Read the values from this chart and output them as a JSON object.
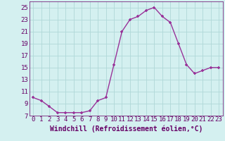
{
  "x": [
    0,
    1,
    2,
    3,
    4,
    5,
    6,
    7,
    8,
    9,
    10,
    11,
    12,
    13,
    14,
    15,
    16,
    17,
    18,
    19,
    20,
    21,
    22,
    23
  ],
  "y": [
    10.0,
    9.5,
    8.5,
    7.5,
    7.5,
    7.5,
    7.5,
    7.8,
    9.5,
    10.0,
    15.5,
    21.0,
    23.0,
    23.5,
    24.5,
    25.0,
    23.5,
    22.5,
    19.0,
    15.5,
    14.0,
    14.5,
    15.0,
    15.0
  ],
  "line_color": "#993399",
  "marker": "+",
  "bg_color": "#d4f0f0",
  "grid_color": "#b0d8d8",
  "xlabel": "Windchill (Refroidissement éolien,°C)",
  "ylim": [
    7,
    26
  ],
  "yticks": [
    7,
    9,
    11,
    13,
    15,
    17,
    19,
    21,
    23,
    25
  ],
  "xlim": [
    -0.5,
    23.5
  ],
  "xticks": [
    0,
    1,
    2,
    3,
    4,
    5,
    6,
    7,
    8,
    9,
    10,
    11,
    12,
    13,
    14,
    15,
    16,
    17,
    18,
    19,
    20,
    21,
    22,
    23
  ],
  "tick_color": "#660066",
  "xlabel_fontsize": 7.0,
  "tick_fontsize": 6.5,
  "markersize": 3.5,
  "linewidth": 1.0
}
